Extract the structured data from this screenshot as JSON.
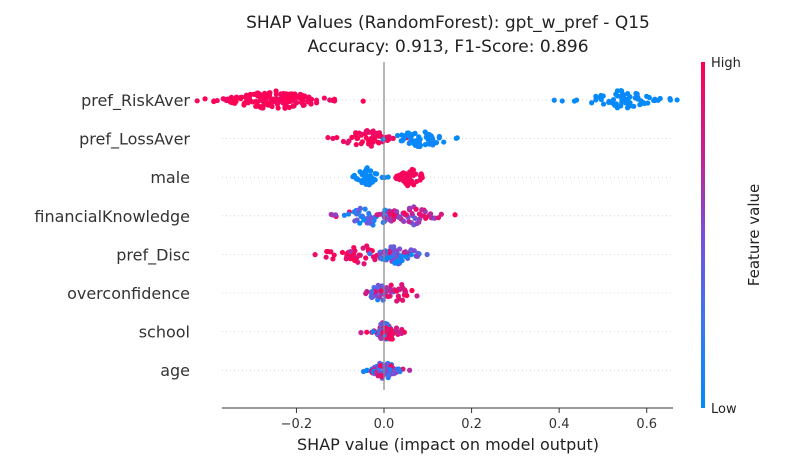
{
  "chart_data": {
    "type": "scatter",
    "subtype": "shap-beeswarm",
    "title_line1": "SHAP Values (RandomForest): gpt_w_pref - Q15",
    "title_line2": "Accuracy: 0.913, F1-Score: 0.896",
    "xlabel": "SHAP value (impact on model output)",
    "xlim": [
      -0.37,
      0.66
    ],
    "xticks": [
      {
        "value": -0.2,
        "label": "−0.2"
      },
      {
        "value": 0.0,
        "label": "0.0"
      },
      {
        "value": 0.2,
        "label": "0.2"
      },
      {
        "value": 0.4,
        "label": "0.4"
      },
      {
        "value": 0.6,
        "label": "0.6"
      }
    ],
    "colorbar": {
      "high_label": "High",
      "low_label": "Low",
      "title": "Feature value",
      "high_color": "#ff0052",
      "low_color": "#008bfb"
    },
    "features": [
      {
        "name": "pref_RiskAver",
        "clusters": [
          {
            "center": -0.25,
            "spread": 0.065,
            "count": 150,
            "value": 0.97,
            "vspread": 0.03
          },
          {
            "center": 0.54,
            "spread": 0.05,
            "count": 70,
            "value": 0.02,
            "vspread": 0.02
          }
        ]
      },
      {
        "name": "pref_LossAver",
        "clusters": [
          {
            "center": -0.04,
            "spread": 0.035,
            "count": 50,
            "value": 0.95,
            "vspread": 0.04
          },
          {
            "center": 0.08,
            "spread": 0.04,
            "count": 55,
            "value": 0.04,
            "vspread": 0.03
          }
        ]
      },
      {
        "name": "male",
        "clusters": [
          {
            "center": -0.04,
            "spread": 0.017,
            "count": 40,
            "value": 0.03,
            "vspread": 0.02
          },
          {
            "center": 0.06,
            "spread": 0.018,
            "count": 40,
            "value": 0.96,
            "vspread": 0.03
          }
        ]
      },
      {
        "name": "financialKnowledge",
        "clusters": [
          {
            "center": -0.03,
            "spread": 0.045,
            "count": 55,
            "value": 0.35,
            "vspread": 0.25
          },
          {
            "center": 0.06,
            "spread": 0.04,
            "count": 50,
            "value": 0.75,
            "vspread": 0.2
          }
        ]
      },
      {
        "name": "pref_Disc",
        "clusters": [
          {
            "center": -0.05,
            "spread": 0.055,
            "count": 55,
            "value": 0.9,
            "vspread": 0.08
          },
          {
            "center": 0.03,
            "spread": 0.03,
            "count": 55,
            "value": 0.3,
            "vspread": 0.25
          }
        ]
      },
      {
        "name": "overconfidence",
        "clusters": [
          {
            "center": -0.01,
            "spread": 0.015,
            "count": 45,
            "value": 0.35,
            "vspread": 0.25
          },
          {
            "center": 0.03,
            "spread": 0.03,
            "count": 30,
            "value": 0.85,
            "vspread": 0.12
          }
        ]
      },
      {
        "name": "school",
        "clusters": [
          {
            "center": 0.0,
            "spread": 0.014,
            "count": 55,
            "value": 0.6,
            "vspread": 0.35
          },
          {
            "center": 0.02,
            "spread": 0.012,
            "count": 20,
            "value": 0.9,
            "vspread": 0.1
          }
        ]
      },
      {
        "name": "age",
        "clusters": [
          {
            "center": 0.0,
            "spread": 0.018,
            "count": 60,
            "value": 0.5,
            "vspread": 0.35
          }
        ]
      }
    ]
  }
}
